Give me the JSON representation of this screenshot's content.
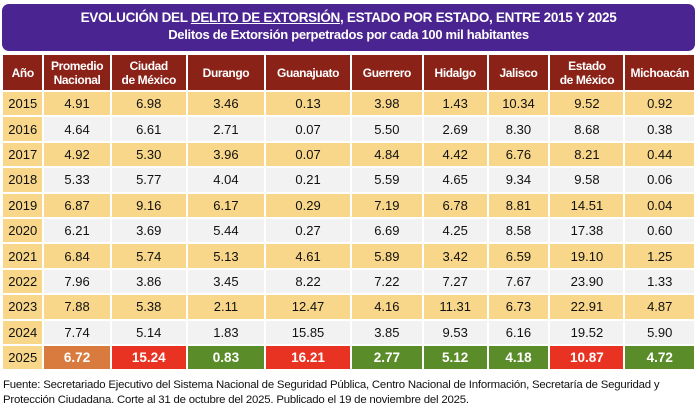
{
  "title": {
    "pre": "EVOLUCIÓN DEL ",
    "underlined": "DELITO DE EXTORSIÓN",
    "post": ", ESTADO POR ESTADO, ENTRE 2015 Y 2025",
    "subtitle": "Delitos de Extorsión perpetrados por cada 100 mil habitantes"
  },
  "colors": {
    "title_bg": "#4a2490",
    "header_bg": "#8b2218",
    "row_alt": "#f8d78a",
    "row": "#f2f2f2",
    "increase": "#e83323",
    "decrease": "#5b8c2a",
    "moderate": "#d97b3e"
  },
  "headers": [
    "Año",
    "Promedio Nacional",
    "Ciudad de México",
    "Durango",
    "Guanajuato",
    "Guerrero",
    "Hidalgo",
    "Jalisco",
    "Estado de México",
    "Michoacán"
  ],
  "rows": [
    [
      "2015",
      "4.91",
      "6.98",
      "3.46",
      "0.13",
      "3.98",
      "1.43",
      "10.34",
      "9.52",
      "0.92"
    ],
    [
      "2016",
      "4.64",
      "6.61",
      "2.71",
      "0.07",
      "5.50",
      "2.69",
      "8.30",
      "8.68",
      "0.38"
    ],
    [
      "2017",
      "4.92",
      "5.30",
      "3.96",
      "0.07",
      "4.84",
      "4.42",
      "6.76",
      "8.21",
      "0.44"
    ],
    [
      "2018",
      "5.33",
      "5.77",
      "4.04",
      "0.21",
      "5.59",
      "4.65",
      "9.34",
      "9.58",
      "0.06"
    ],
    [
      "2019",
      "6.87",
      "9.16",
      "6.17",
      "0.29",
      "7.19",
      "6.78",
      "8.81",
      "14.51",
      "0.04"
    ],
    [
      "2020",
      "6.21",
      "3.69",
      "5.44",
      "0.27",
      "6.69",
      "4.25",
      "8.58",
      "17.38",
      "0.60"
    ],
    [
      "2021",
      "6.84",
      "5.74",
      "5.13",
      "4.61",
      "5.89",
      "3.42",
      "6.59",
      "19.10",
      "1.25"
    ],
    [
      "2022",
      "7.96",
      "3.86",
      "3.45",
      "8.22",
      "7.22",
      "7.27",
      "7.67",
      "23.90",
      "1.33"
    ],
    [
      "2023",
      "7.88",
      "5.38",
      "2.11",
      "12.47",
      "4.16",
      "11.31",
      "6.73",
      "22.91",
      "4.87"
    ],
    [
      "2024",
      "7.74",
      "5.14",
      "1.83",
      "15.85",
      "3.85",
      "9.53",
      "6.16",
      "19.52",
      "5.90"
    ]
  ],
  "last_row": {
    "values": [
      "2025",
      "6.72",
      "15.24",
      "0.83",
      "16.21",
      "2.77",
      "5.12",
      "4.18",
      "10.87",
      "4.72"
    ],
    "status": [
      "",
      "moderate",
      "increase",
      "decrease",
      "increase",
      "decrease",
      "decrease",
      "decrease",
      "increase",
      "decrease"
    ]
  },
  "footer": "Fuente: Secretariado Ejecutivo del Sistema Nacional de Seguridad Pública, Centro Nacional de Información, Secretaría de Seguridad y Protección Ciudadana. Corte al 31 de octubre del 2025. Publicado el 19 de noviembre del 2025."
}
